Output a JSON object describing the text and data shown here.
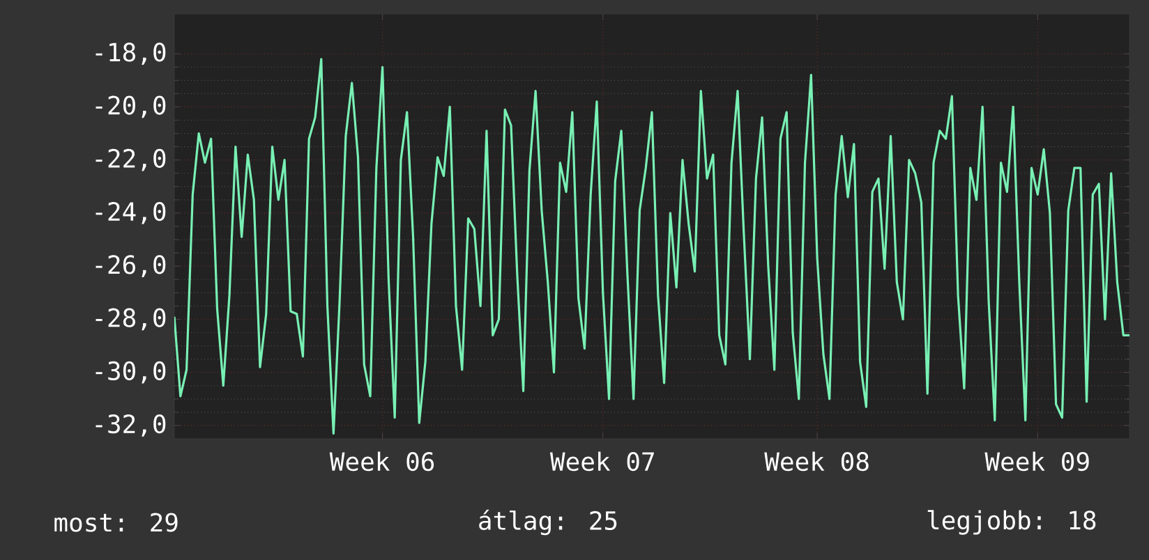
{
  "chart_data": {
    "type": "line",
    "categories": [
      null,
      null,
      null,
      null,
      null,
      null,
      null,
      null,
      null,
      null,
      null,
      null,
      null,
      null,
      null,
      null,
      null,
      null,
      null,
      null,
      null,
      null,
      null,
      null,
      null,
      null,
      null,
      null,
      null,
      null,
      null,
      null,
      null,
      null,
      "Week 06",
      null,
      null,
      null,
      null,
      null,
      null,
      null,
      null,
      null,
      null,
      null,
      null,
      null,
      null,
      null,
      null,
      null,
      null,
      null,
      null,
      null,
      null,
      null,
      null,
      null,
      null,
      null,
      null,
      null,
      null,
      null,
      null,
      null,
      null,
      null,
      "Week 07",
      null,
      null,
      null,
      null,
      null,
      null,
      null,
      null,
      null,
      null,
      null,
      null,
      null,
      null,
      null,
      null,
      null,
      null,
      null,
      null,
      null,
      null,
      null,
      null,
      null,
      null,
      null,
      null,
      null,
      null,
      null,
      null,
      null,
      null,
      "Week 08",
      null,
      null,
      null,
      null,
      null,
      null,
      null,
      null,
      null,
      null,
      null,
      null,
      null,
      null,
      null,
      null,
      null,
      null,
      null,
      null,
      null,
      null,
      null,
      null,
      null,
      null,
      null,
      null,
      null,
      null,
      null,
      null,
      null,
      null,
      null,
      "Week 09",
      null,
      null,
      null,
      null,
      null,
      null,
      null,
      null,
      null,
      null,
      null,
      null,
      null,
      null,
      null
    ],
    "series": [
      {
        "color": "#78f0b4",
        "values": [
          -27.9,
          -30.9,
          -29.9,
          -23.3,
          -21.0,
          -22.1,
          -21.2,
          -27.6,
          -30.5,
          -27.1,
          -21.5,
          -24.9,
          -21.8,
          -23.5,
          -29.8,
          -27.8,
          -21.5,
          -23.5,
          -22.0,
          -27.7,
          -27.8,
          -29.4,
          -21.2,
          -20.4,
          -18.2,
          -27.5,
          -32.3,
          -27.3,
          -21.1,
          -19.1,
          -21.9,
          -29.7,
          -30.9,
          -22.3,
          -18.5,
          -26.5,
          -31.7,
          -22.0,
          -20.2,
          -24.9,
          -31.9,
          -29.6,
          -24.4,
          -21.9,
          -22.6,
          -20.0,
          -27.5,
          -29.9,
          -24.2,
          -24.6,
          -27.5,
          -20.9,
          -28.6,
          -28.0,
          -20.1,
          -20.7,
          -26.3,
          -30.7,
          -22.4,
          -19.4,
          -23.9,
          -26.6,
          -30.0,
          -22.1,
          -23.2,
          -20.2,
          -27.2,
          -29.1,
          -23.3,
          -19.8,
          -27.0,
          -31.0,
          -22.8,
          -20.9,
          -26.3,
          -31.0,
          -23.9,
          -22.3,
          -20.2,
          -27.1,
          -30.4,
          -24.0,
          -26.8,
          -22.0,
          -24.4,
          -26.2,
          -19.4,
          -22.7,
          -21.8,
          -28.6,
          -29.7,
          -22.1,
          -19.4,
          -24.7,
          -29.5,
          -22.7,
          -20.4,
          -26.0,
          -29.9,
          -21.2,
          -20.2,
          -28.5,
          -31.0,
          -22.1,
          -18.8,
          -25.7,
          -29.3,
          -31.0,
          -23.3,
          -21.1,
          -23.4,
          -21.4,
          -29.6,
          -31.3,
          -23.2,
          -22.7,
          -26.1,
          -21.1,
          -26.6,
          -28.0,
          -22.0,
          -22.5,
          -23.6,
          -30.8,
          -22.1,
          -20.9,
          -21.2,
          -19.6,
          -27.1,
          -30.6,
          -22.3,
          -23.5,
          -20.0,
          -27.3,
          -31.8,
          -22.1,
          -23.2,
          -20.0,
          -26.6,
          -31.8,
          -22.3,
          -23.3,
          -21.6,
          -24.0,
          -31.2,
          -31.7,
          -23.9,
          -22.3,
          -22.3,
          -31.1,
          -23.3,
          -22.9,
          -28.0,
          -22.5,
          -26.6,
          -28.6,
          -28.6
        ]
      }
    ],
    "ylim": [
      -32.5,
      -16.5
    ],
    "yticks": [
      {
        "value": -32,
        "label": "-32,0"
      },
      {
        "value": -30,
        "label": "-30,0"
      },
      {
        "value": -28,
        "label": "-28,0"
      },
      {
        "value": -26,
        "label": "-26,0"
      },
      {
        "value": -24,
        "label": "-24,0"
      },
      {
        "value": -22,
        "label": "-22,0"
      },
      {
        "value": -20,
        "label": "-20,0"
      },
      {
        "value": -18,
        "label": "-18,0"
      }
    ],
    "grid": true,
    "annotations": [
      "most: 29",
      "átlag: 25",
      "legjobb: 18"
    ]
  }
}
